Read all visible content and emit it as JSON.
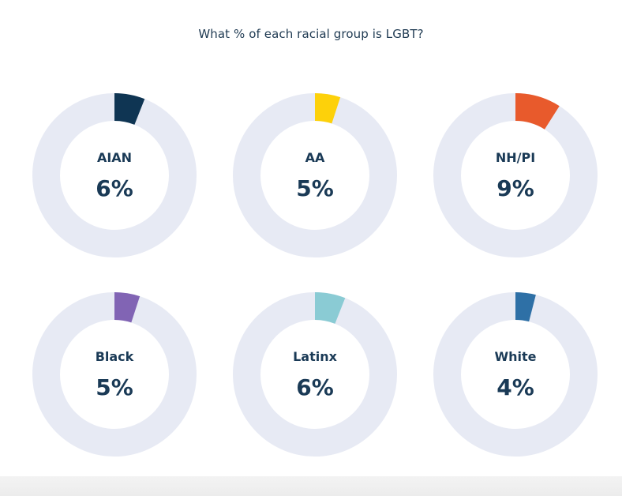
{
  "chart_data": {
    "type": "pie",
    "title": "What % of each racial group is LGBT?",
    "categories": [
      "AIAN",
      "AA",
      "NH/PI",
      "Black",
      "Latinx",
      "White"
    ],
    "values": [
      6,
      5,
      9,
      5,
      6,
      4
    ],
    "value_labels": [
      "6%",
      "5%",
      "9%",
      "5%",
      "6%",
      "4%"
    ],
    "unit": "%",
    "colors": [
      "#0f3553",
      "#fdd10a",
      "#e85a2c",
      "#8164b4",
      "#8acbd4",
      "#2e70a6"
    ],
    "track_color": "#e7eaf4",
    "layout": "grid 2 rows x 3 columns"
  }
}
